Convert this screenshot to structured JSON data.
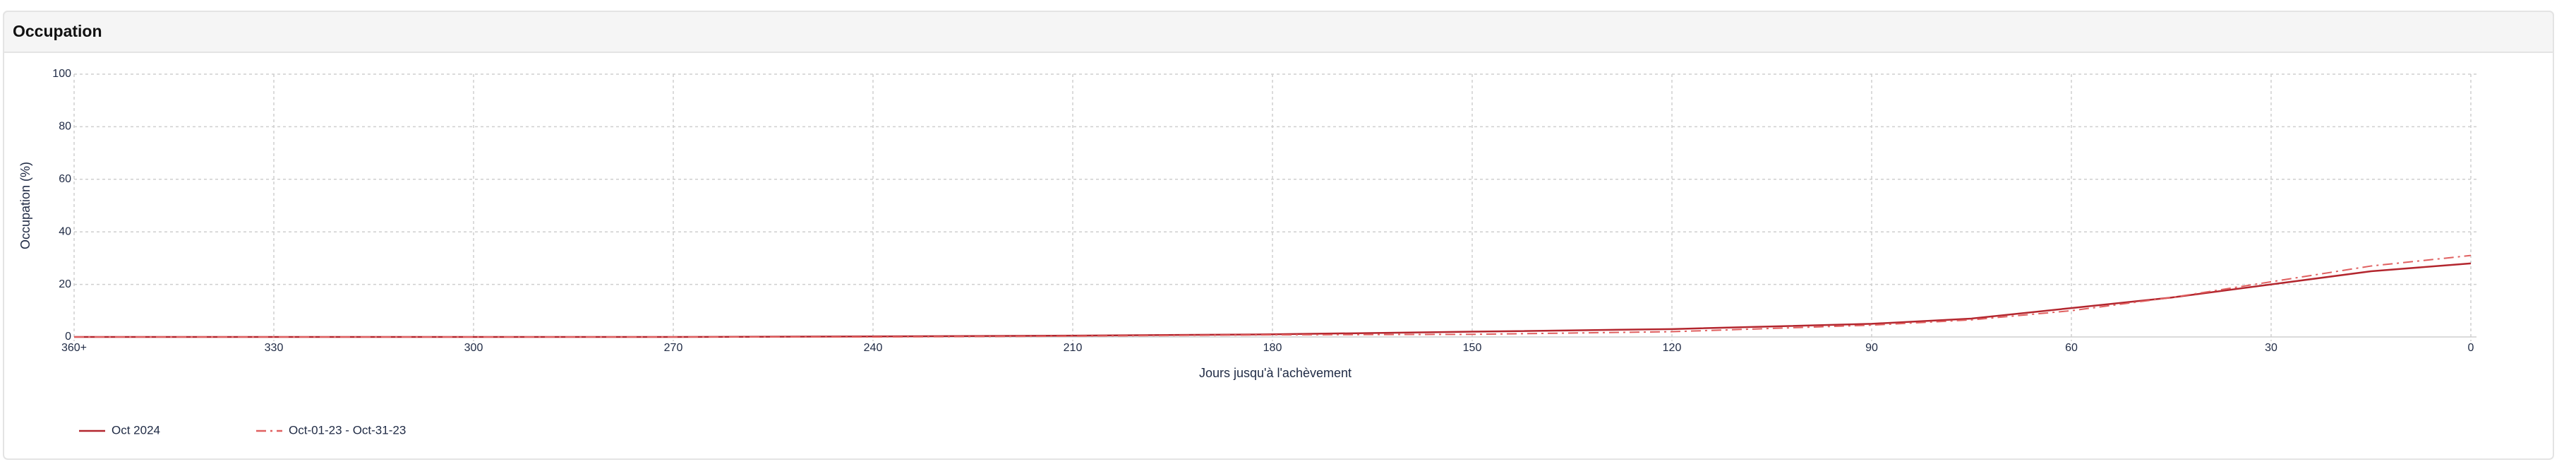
{
  "chart_data": {
    "type": "line",
    "title": "Occupation",
    "x_label": "Jours jusqu'à l'achèvement",
    "y_label": "Occupation (%)",
    "x": [
      360,
      330,
      300,
      270,
      240,
      210,
      180,
      150,
      120,
      90,
      75,
      60,
      45,
      30,
      15,
      0
    ],
    "series": [
      {
        "name": "Oct 2024",
        "color": "#b3262e",
        "line_style": "solid",
        "values": [
          0,
          0,
          0,
          0,
          0.2,
          0.5,
          1,
          2,
          3,
          5,
          7,
          11,
          15,
          20,
          25,
          28
        ]
      },
      {
        "name": "Oct-01-23 - Oct-31-23",
        "color": "#e06060",
        "line_style": "dashdot",
        "values": [
          0,
          0,
          0,
          0,
          0,
          0.3,
          0.8,
          1,
          2,
          4.5,
          6.5,
          10,
          15,
          21,
          27,
          31
        ]
      }
    ],
    "xlim": [
      360,
      0
    ],
    "xticks": [
      {
        "value": 360,
        "label": "360+"
      },
      330,
      300,
      270,
      240,
      210,
      180,
      150,
      120,
      90,
      60,
      30,
      0
    ],
    "ylim": [
      0,
      100
    ],
    "yticks": [
      0,
      20,
      40,
      60,
      80,
      100
    ],
    "grid": true
  }
}
